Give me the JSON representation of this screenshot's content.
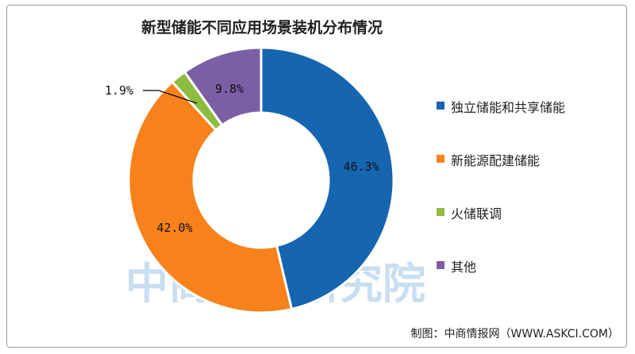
{
  "chart_data": {
    "type": "pie",
    "donut": true,
    "title": "新型储能不同应用场景装机分布情况",
    "categories": [
      "独立储能和共享储能",
      "新能源配建储能",
      "火储联调",
      "其他"
    ],
    "values": [
      46.3,
      42.0,
      1.9,
      9.8
    ],
    "data_labels": [
      "46.3%",
      "42.0%",
      "1.9%",
      "9.8%"
    ],
    "colors": [
      "#1565b0",
      "#f7821b",
      "#8cbc40",
      "#7b5fa5"
    ],
    "legend_position": "right",
    "start_angle": "top, clockwise"
  },
  "source": "制图：中商情报网（WWW.ASKCI.COM）",
  "watermark": "中商产业研究院"
}
